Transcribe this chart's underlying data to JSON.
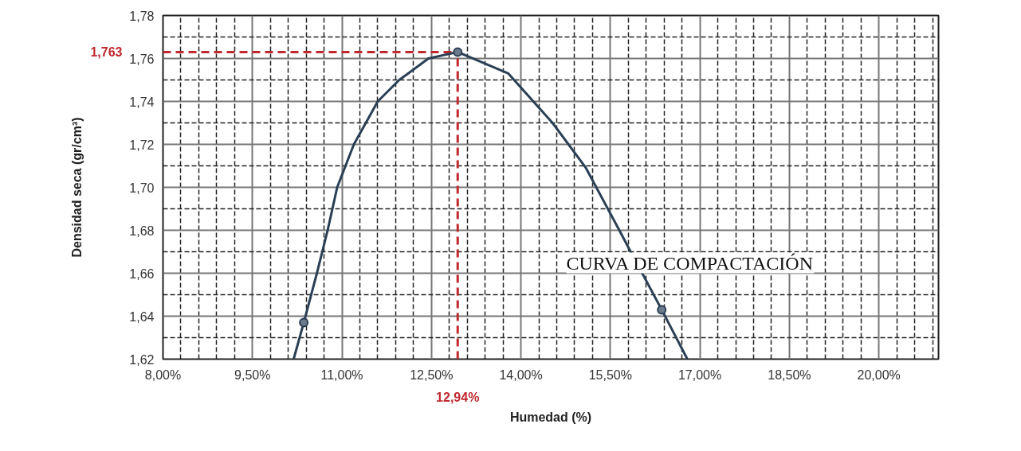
{
  "chart_data": {
    "type": "line",
    "xlabel": "Humedad (%)",
    "ylabel": "Densidad seca (gr/cm³)",
    "xlim": [
      8,
      21
    ],
    "ylim": [
      1.62,
      1.78
    ],
    "xticks": [
      {
        "value": 8,
        "label": "8,00%"
      },
      {
        "value": 9.5,
        "label": "9,50%"
      },
      {
        "value": 11,
        "label": "11,00%"
      },
      {
        "value": 12.5,
        "label": "12,50%"
      },
      {
        "value": 14,
        "label": "14,00%"
      },
      {
        "value": 15.5,
        "label": "15,50%"
      },
      {
        "value": 17,
        "label": "17,00%"
      },
      {
        "value": 18.5,
        "label": "18,50%"
      },
      {
        "value": 20,
        "label": "20,00%"
      }
    ],
    "yticks": [
      {
        "value": 1.62,
        "label": "1,62"
      },
      {
        "value": 1.64,
        "label": "1,64"
      },
      {
        "value": 1.66,
        "label": "1,66"
      },
      {
        "value": 1.68,
        "label": "1,68"
      },
      {
        "value": 1.7,
        "label": "1,70"
      },
      {
        "value": 1.72,
        "label": "1,72"
      },
      {
        "value": 1.74,
        "label": "1,74"
      },
      {
        "value": 1.76,
        "label": "1,76"
      },
      {
        "value": 1.78,
        "label": "1,78"
      }
    ],
    "grid": true,
    "series": [
      {
        "name": "CURVA DE COMPACTACIÓN",
        "marker": "none",
        "color": "#2b3f55",
        "x": [
          10.19,
          10.36,
          10.58,
          10.76,
          10.92,
          11.2,
          11.6,
          11.96,
          12.45,
          12.94,
          13.79,
          14.53,
          15.09,
          15.63,
          15.84,
          16.36,
          16.79
        ],
        "values": [
          1.62,
          1.637,
          1.66,
          1.68,
          1.7,
          1.72,
          1.74,
          1.75,
          1.76,
          1.763,
          1.753,
          1.73,
          1.709,
          1.681,
          1.67,
          1.643,
          1.62
        ]
      },
      {
        "type": "scatter",
        "marker": "circle",
        "color": "#2b3f55",
        "x": [
          10.36,
          12.94,
          16.36
        ],
        "values": [
          1.637,
          1.763,
          1.643
        ]
      }
    ],
    "ref_lines": [
      {
        "axis": "x",
        "value": 12.94,
        "label": "12,94%",
        "color": "#c0282d",
        "line_style": "dashed"
      },
      {
        "axis": "y",
        "value": 1.763,
        "label": "1,763",
        "color": "#c0282d",
        "line_style": "dashed"
      }
    ]
  }
}
